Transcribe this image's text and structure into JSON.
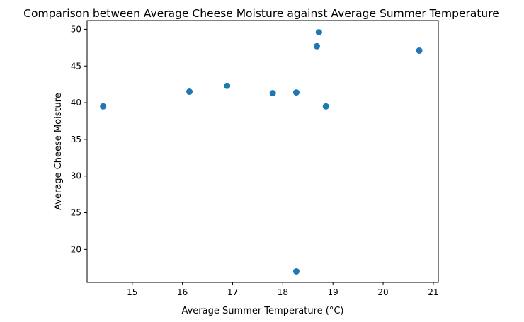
{
  "chart_data": {
    "type": "scatter",
    "title": "Comparison between Average Cheese Moisture against Average Summer Temperature",
    "xlabel": "Average Summer Temperature (°C)",
    "ylabel": "Average Cheese Moisture",
    "xlim": [
      14.1,
      21.1
    ],
    "ylim": [
      15.5,
      51.2
    ],
    "xticks": [
      15,
      16,
      17,
      18,
      19,
      20,
      21
    ],
    "yticks": [
      20,
      25,
      30,
      35,
      40,
      45,
      50
    ],
    "grid": false,
    "legend": "none",
    "marker_color": "#1f77b4",
    "points": [
      {
        "x": 14.42,
        "y": 39.5
      },
      {
        "x": 16.14,
        "y": 41.5
      },
      {
        "x": 16.89,
        "y": 42.3
      },
      {
        "x": 17.8,
        "y": 41.3
      },
      {
        "x": 18.27,
        "y": 41.4
      },
      {
        "x": 18.27,
        "y": 17.0
      },
      {
        "x": 18.68,
        "y": 47.7
      },
      {
        "x": 18.72,
        "y": 49.6
      },
      {
        "x": 18.86,
        "y": 39.5
      },
      {
        "x": 20.72,
        "y": 47.1
      }
    ]
  }
}
